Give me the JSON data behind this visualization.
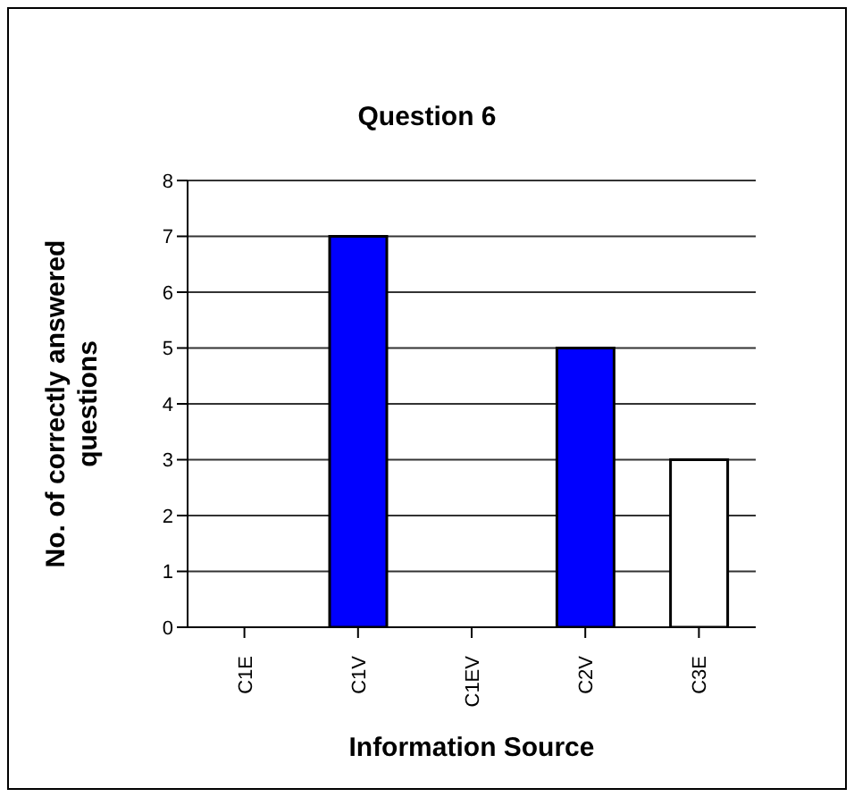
{
  "chart_data": {
    "type": "bar",
    "title": "Question 6",
    "xlabel": "Information Source",
    "ylabel": "No. of correctly answered questions",
    "categories": [
      "C1E",
      "C1V",
      "C1EV",
      "C2V",
      "C3E"
    ],
    "values": [
      0,
      7,
      0,
      5,
      3
    ],
    "colors": [
      "#0000ff",
      "#0000ff",
      "#0000ff",
      "#0000ff",
      "#ffffff"
    ],
    "ylim": [
      0,
      8
    ],
    "yticks": [
      0,
      1,
      2,
      3,
      4,
      5,
      6,
      7,
      8
    ],
    "grid": "y",
    "legend": false
  }
}
